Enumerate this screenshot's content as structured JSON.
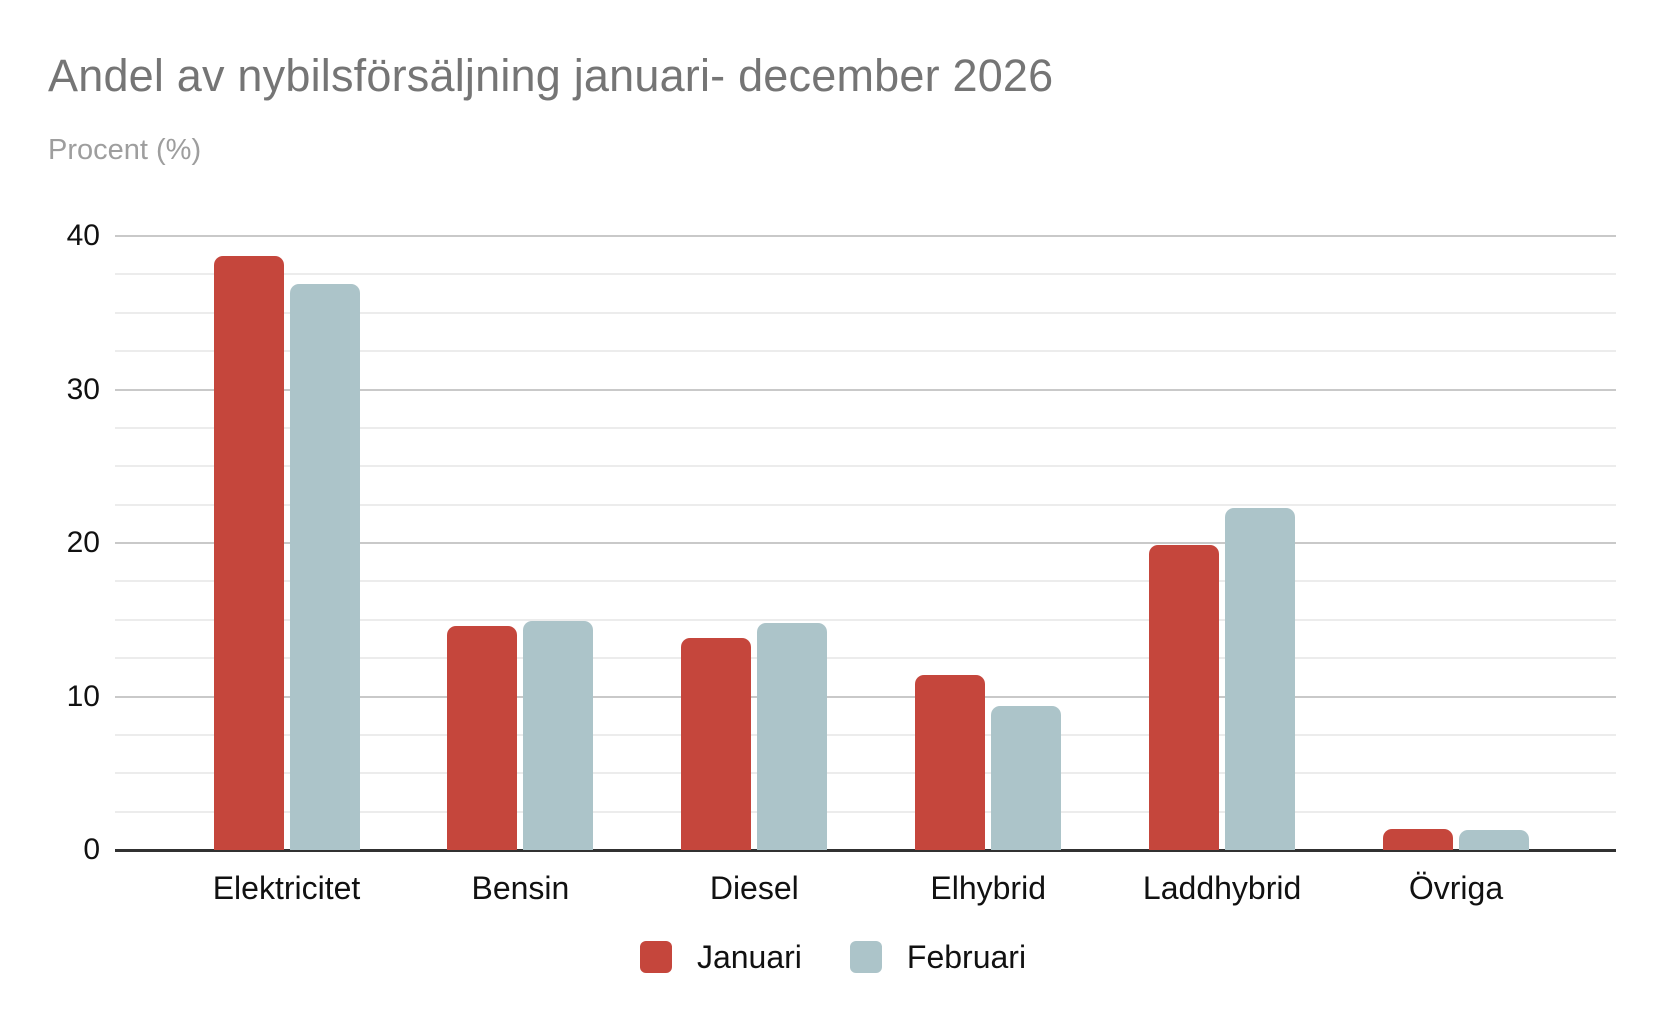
{
  "chart_data": {
    "type": "bar",
    "title": "Andel av nybilsförsäljning januari- december 2026",
    "subtitle": "Procent (%)",
    "xlabel": "",
    "ylabel": "Procent (%)",
    "categories": [
      "Elektricitet",
      "Bensin",
      "Diesel",
      "Elhybrid",
      "Laddhybrid",
      "Övriga"
    ],
    "series": [
      {
        "name": "Januari",
        "color": "#c5463c",
        "values": [
          38.7,
          14.6,
          13.8,
          11.4,
          19.9,
          1.4
        ]
      },
      {
        "name": "Februari",
        "color": "#acc4c9",
        "values": [
          36.9,
          14.9,
          14.8,
          9.4,
          22.3,
          1.3
        ]
      }
    ],
    "ylim": [
      0,
      40
    ],
    "y_ticks": [
      0,
      10,
      20,
      30,
      40
    ],
    "minor_grid_step": 2.5,
    "grid": "on",
    "legend_position": "bottom"
  },
  "colors": {
    "series_januari": "#c5463c",
    "series_februari": "#acc4c9",
    "title_text": "#757575",
    "subtitle_text": "#9e9e9e",
    "axis_text": "#111111",
    "major_gridline": "#c9c9c9",
    "minor_gridline": "#ececec",
    "axis_line": "#313131",
    "background": "#ffffff"
  }
}
